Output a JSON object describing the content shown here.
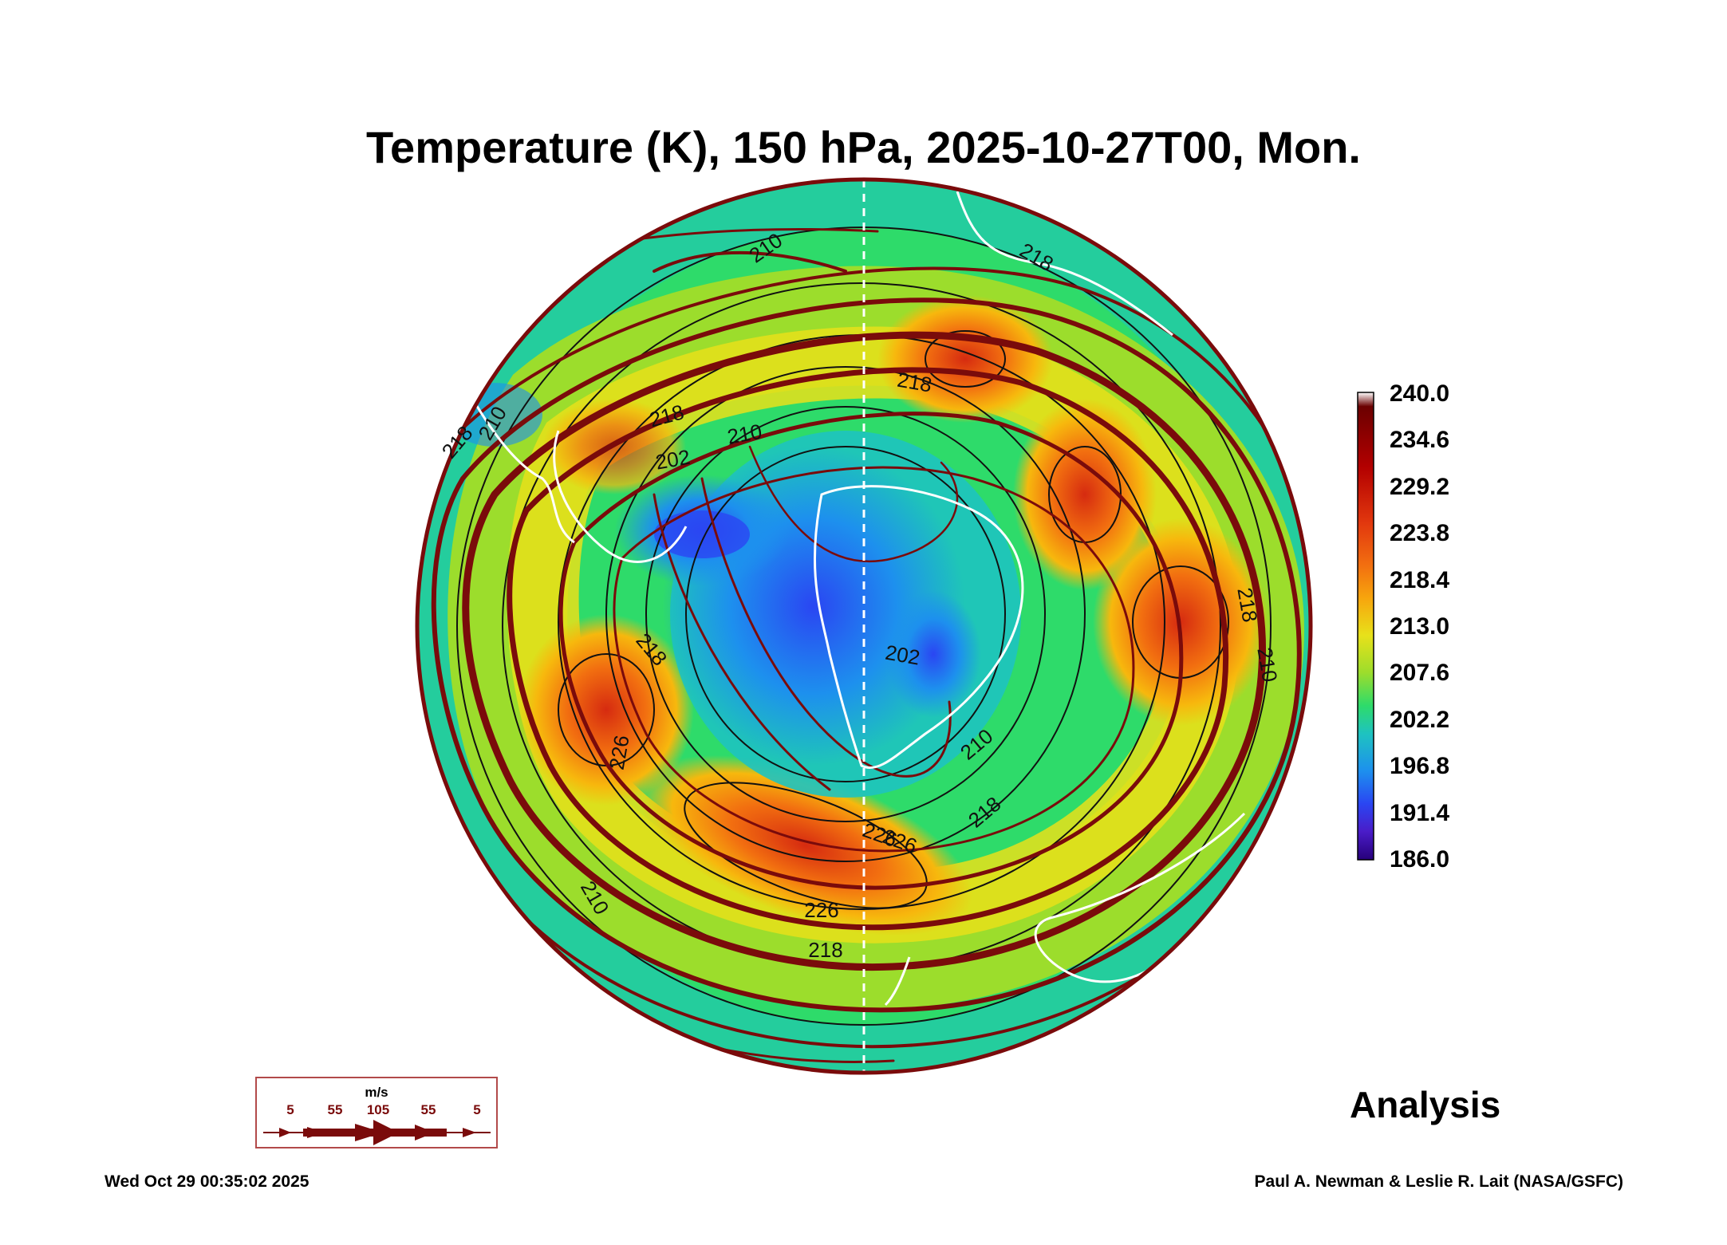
{
  "title": "Temperature (K), 150 hPa, 2025-10-27T00, Mon.",
  "product_label": "Analysis",
  "timestamp": "Wed Oct 29 00:35:02 2025",
  "credit": "Paul A. Newman & Leslie R. Lait (NASA/GSFC)",
  "colorbar": {
    "min": 186.0,
    "max": 240.0,
    "labels": [
      "240.0",
      "234.6",
      "229.2",
      "223.8",
      "218.4",
      "213.0",
      "207.6",
      "202.2",
      "196.8",
      "191.4",
      "186.0"
    ],
    "stops": [
      "#ffffff",
      "#6b0000",
      "#b30000",
      "#e2380e",
      "#f26f10",
      "#f7a50d",
      "#e8e11a",
      "#9cdd2c",
      "#2edb6a",
      "#1ec3c0",
      "#1d90ee",
      "#2a46f2",
      "#4a1cc8",
      "#27007a"
    ]
  },
  "wind_legend": {
    "unit": "m/s",
    "values": [
      "5",
      "55",
      "105",
      "55",
      "5"
    ]
  },
  "contour_labels": [
    "210",
    "218",
    "218",
    "218",
    "210",
    "202",
    "210",
    "218",
    "210",
    "218",
    "202",
    "210",
    "218",
    "226",
    "226",
    "218",
    "226",
    "210",
    "218",
    "226"
  ],
  "map_colors": {
    "streamline": "#7a0b0b",
    "coast": "#ffffff",
    "contour": "#111111"
  }
}
